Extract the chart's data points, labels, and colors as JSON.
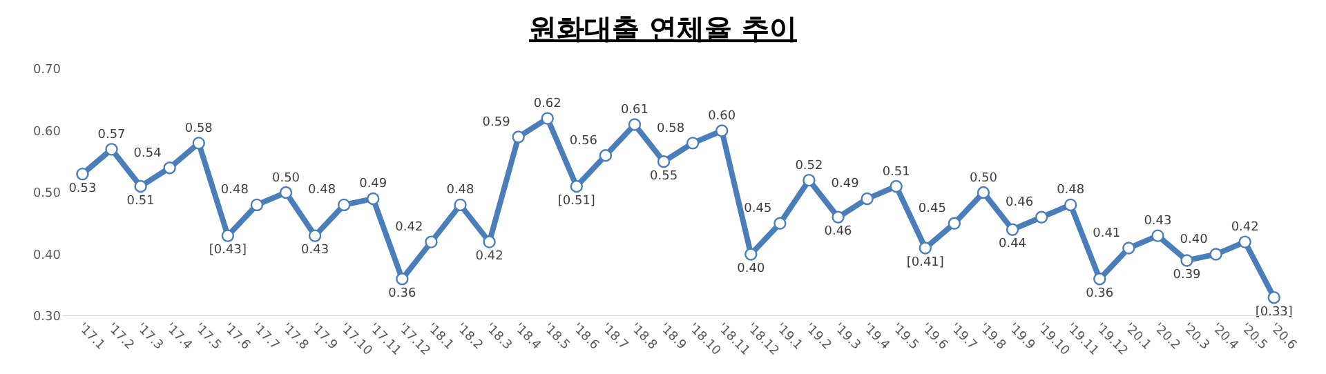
{
  "chart_data": {
    "type": "line",
    "title": "원화대출 연체율 추이",
    "categories": [
      "'17.1",
      "'17.2",
      "'17.3",
      "'17.4",
      "'17.5",
      "'17.6",
      "'17.7",
      "'17.8",
      "'17.9",
      "'17.10",
      "'17.11",
      "'17.12",
      "'18.1",
      "'18.2",
      "'18.3",
      "'18.4",
      "'18.5",
      "'18.6",
      "'18.7",
      "'18.8",
      "'18.9",
      "'18.10",
      "'18.11",
      "'18.12",
      "'19.1",
      "'19.2",
      "'19.3",
      "'19.4",
      "'19.5",
      "'19.6",
      "'19.7",
      "'19.8",
      "'19.9",
      "'19.10",
      "'19.11",
      "'19.12",
      "'20.1",
      "'20.2",
      "'20.3",
      "'20.4",
      "'20.5",
      "'20.6"
    ],
    "series": [
      {
        "color": "#4a7ebb",
        "values": [
          0.53,
          0.57,
          0.51,
          0.54,
          0.58,
          0.43,
          0.48,
          0.5,
          0.43,
          0.48,
          0.49,
          0.36,
          0.42,
          0.48,
          0.42,
          0.59,
          0.62,
          0.51,
          0.56,
          0.61,
          0.55,
          0.58,
          0.6,
          0.4,
          0.45,
          0.52,
          0.46,
          0.49,
          0.51,
          0.41,
          0.45,
          0.5,
          0.44,
          0.46,
          0.48,
          0.36,
          0.41,
          0.43,
          0.39,
          0.4,
          0.42,
          0.33
        ],
        "value_labels": [
          "0.53",
          "0.57",
          "0.51",
          "0.54",
          "0.58",
          "[0.43]",
          "0.48",
          "0.50",
          "0.43",
          "0.48",
          "0.49",
          "0.36",
          "0.42",
          "0.48",
          "0.42",
          "0.59",
          "0.62",
          "[0.51]",
          "0.56",
          "0.61",
          "0.55",
          "0.58",
          "0.60",
          "0.40",
          "0.45",
          "0.52",
          "0.46",
          "0.49",
          "0.51",
          "[0.41]",
          "0.45",
          "0.50",
          "0.44",
          "0.46",
          "0.48",
          "0.36",
          "0.41",
          "0.43",
          "0.39",
          "0.40",
          "0.42",
          "[0.33]"
        ]
      }
    ],
    "ylim": [
      0.3,
      0.7
    ],
    "yticks": [
      {
        "value": 0.3,
        "label": "0.30"
      },
      {
        "value": 0.4,
        "label": "0.40"
      },
      {
        "value": 0.5,
        "label": "0.50"
      },
      {
        "value": 0.6,
        "label": "0.60"
      },
      {
        "value": 0.7,
        "label": "0.70"
      }
    ],
    "grid": false,
    "marker": "circle",
    "line_style": "solid"
  }
}
